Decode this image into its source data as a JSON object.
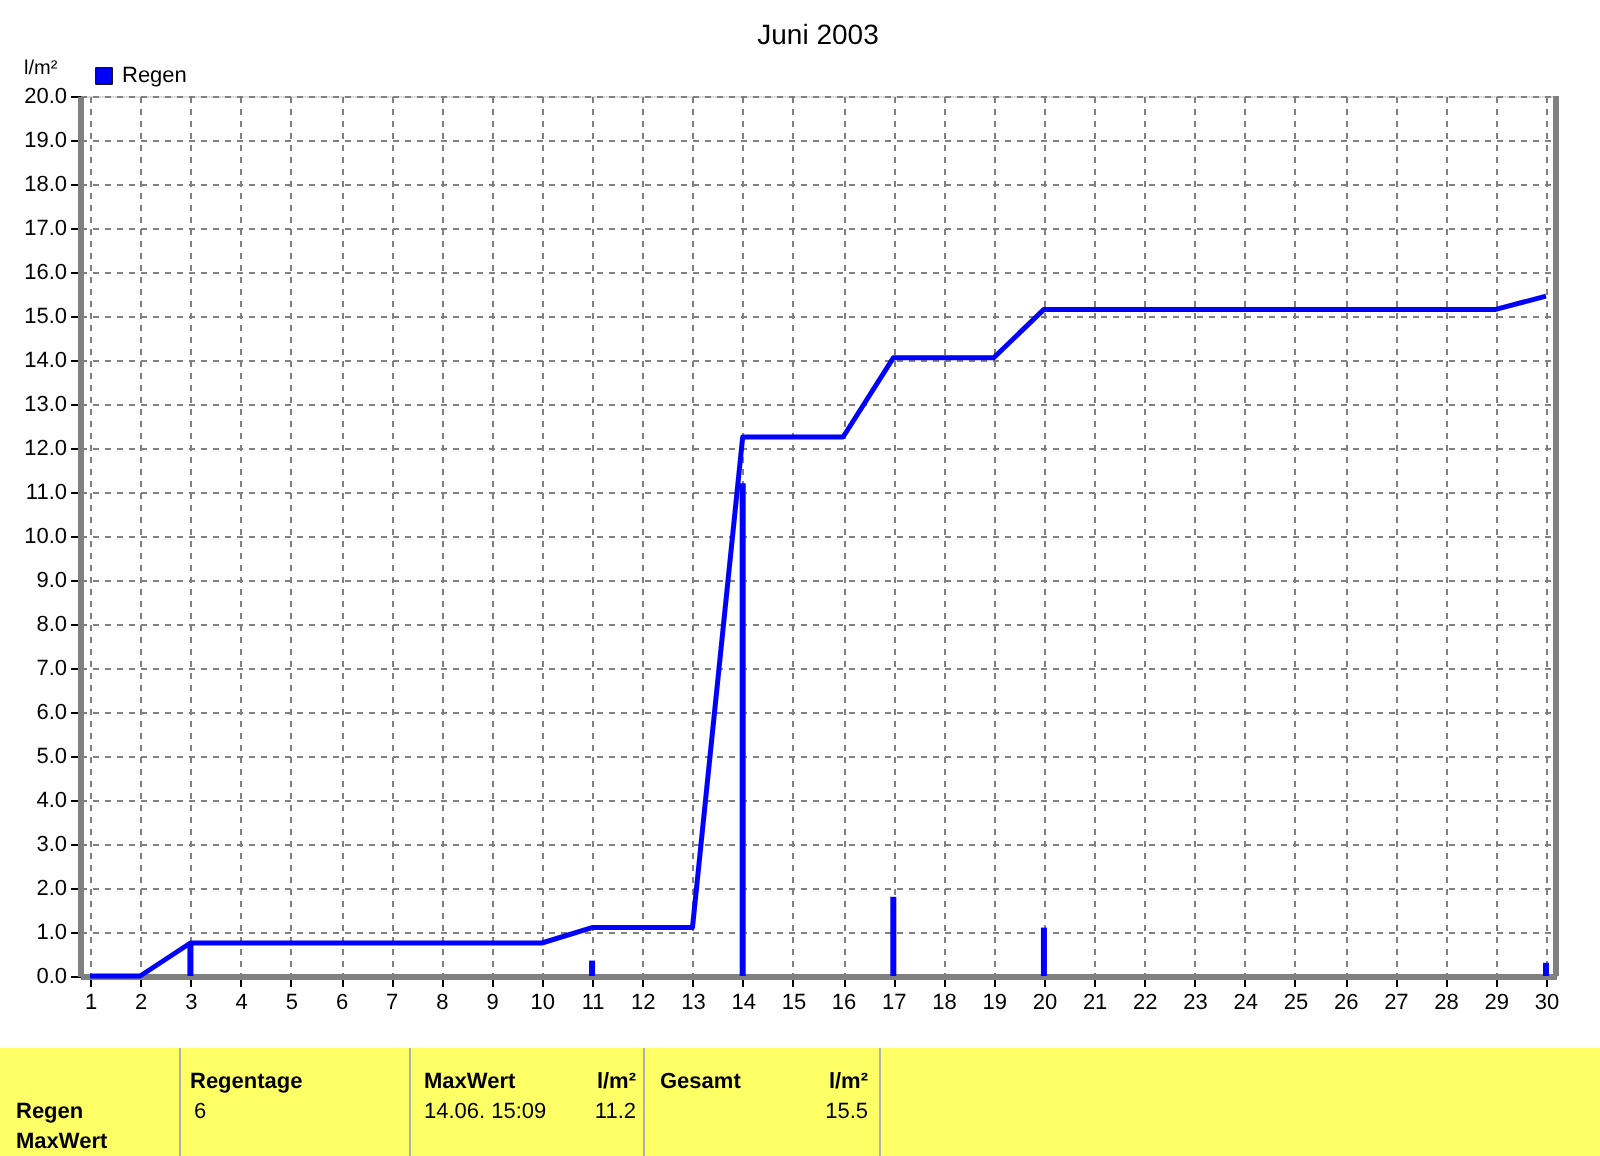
{
  "chart_data": {
    "type": "bar",
    "title": "Juni 2003",
    "ylabel": "l/m²",
    "x": [
      1,
      2,
      3,
      10,
      11,
      13,
      14,
      16,
      17,
      19,
      20,
      29,
      30
    ],
    "series": [
      {
        "name": "Regen",
        "color": "#0000ff",
        "x": [
          3,
          11,
          14,
          17,
          20,
          30
        ],
        "values": [
          0.75,
          0.35,
          11.2,
          1.8,
          1.1,
          0.3
        ]
      },
      {
        "type": "line",
        "color": "#0000ff",
        "values": [
          0,
          0,
          0.75,
          0.75,
          1.1,
          1.1,
          12.25,
          12.25,
          14.05,
          14.05,
          15.15,
          15.15,
          15.45
        ]
      }
    ],
    "xlim": [
      1,
      30
    ],
    "xticks": [
      1,
      2,
      3,
      4,
      5,
      6,
      7,
      8,
      9,
      10,
      11,
      12,
      13,
      14,
      15,
      16,
      17,
      18,
      19,
      20,
      21,
      22,
      23,
      24,
      25,
      26,
      27,
      28,
      29,
      30
    ],
    "ylim": [
      0,
      20
    ],
    "yticks": [
      {
        "value": 0,
        "label": "0.0"
      },
      {
        "value": 1,
        "label": "1.0"
      },
      {
        "value": 2,
        "label": "2.0"
      },
      {
        "value": 3,
        "label": "3.0"
      },
      {
        "value": 4,
        "label": "4.0"
      },
      {
        "value": 5,
        "label": "5.0"
      },
      {
        "value": 6,
        "label": "6.0"
      },
      {
        "value": 7,
        "label": "7.0"
      },
      {
        "value": 8,
        "label": "8.0"
      },
      {
        "value": 9,
        "label": "9.0"
      },
      {
        "value": 10,
        "label": "10.0"
      },
      {
        "value": 11,
        "label": "11.0"
      },
      {
        "value": 12,
        "label": "12.0"
      },
      {
        "value": 13,
        "label": "13.0"
      },
      {
        "value": 14,
        "label": "14.0"
      },
      {
        "value": 15,
        "label": "15.0"
      },
      {
        "value": 16,
        "label": "16.0"
      },
      {
        "value": 17,
        "label": "17.0"
      },
      {
        "value": 18,
        "label": "18.0"
      },
      {
        "value": 19,
        "label": "19.0"
      },
      {
        "value": 20,
        "label": "20.0"
      }
    ],
    "grid": true,
    "legend": "top left",
    "annotations": [
      "Regentage",
      "6",
      "MaxWert",
      "14.06.  15:09",
      "l/m²",
      "11.2",
      "Gesamt",
      "l/m²",
      "15.5",
      "Regen",
      "MaxWert"
    ]
  }
}
